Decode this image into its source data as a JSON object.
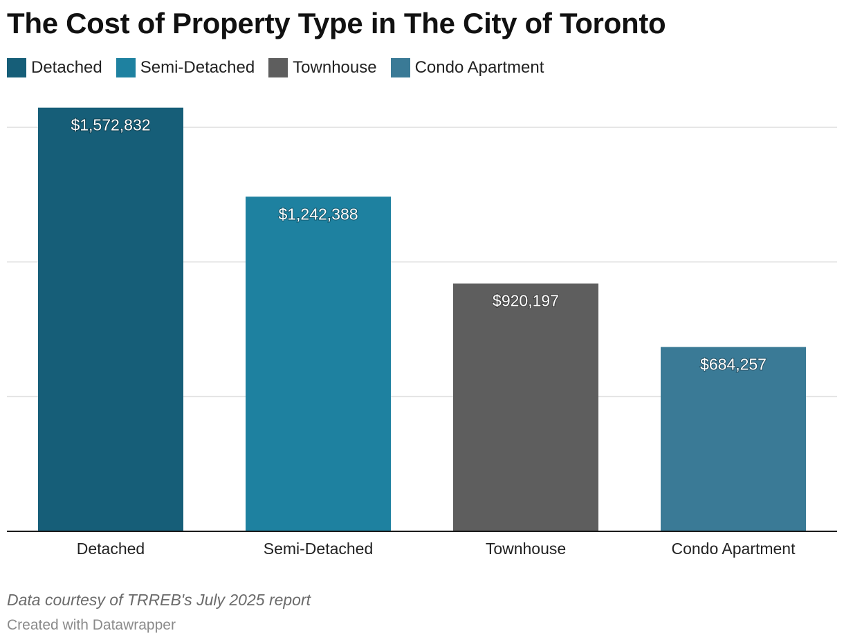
{
  "title": "The Cost of Property Type in The City of Toronto",
  "legend": [
    {
      "label": "Detached",
      "color": "#165e78"
    },
    {
      "label": "Semi-Detached",
      "color": "#1e81a0"
    },
    {
      "label": "Townhouse",
      "color": "#5e5e5e"
    },
    {
      "label": "Condo Apartment",
      "color": "#3a7a96"
    }
  ],
  "chart_data": {
    "type": "bar",
    "title": "The Cost of Property Type in The City of Toronto",
    "categories": [
      "Detached",
      "Semi-Detached",
      "Townhouse",
      "Condo Apartment"
    ],
    "values": [
      1572832,
      1242388,
      920197,
      684257
    ],
    "value_labels": [
      "$1,572,832",
      "$1,242,388",
      "$920,197",
      "$684,257"
    ],
    "colors": [
      "#165e78",
      "#1e81a0",
      "#5e5e5e",
      "#3a7a96"
    ],
    "xlabel": "",
    "ylabel": "",
    "ylim": [
      0,
      1500000
    ],
    "gridlines": [
      500000,
      1000000,
      1500000
    ],
    "grid": true,
    "legend": "top-left"
  },
  "footnote": "Data courtesy of TRREB's July 2025 report",
  "credit": "Created with Datawrapper"
}
